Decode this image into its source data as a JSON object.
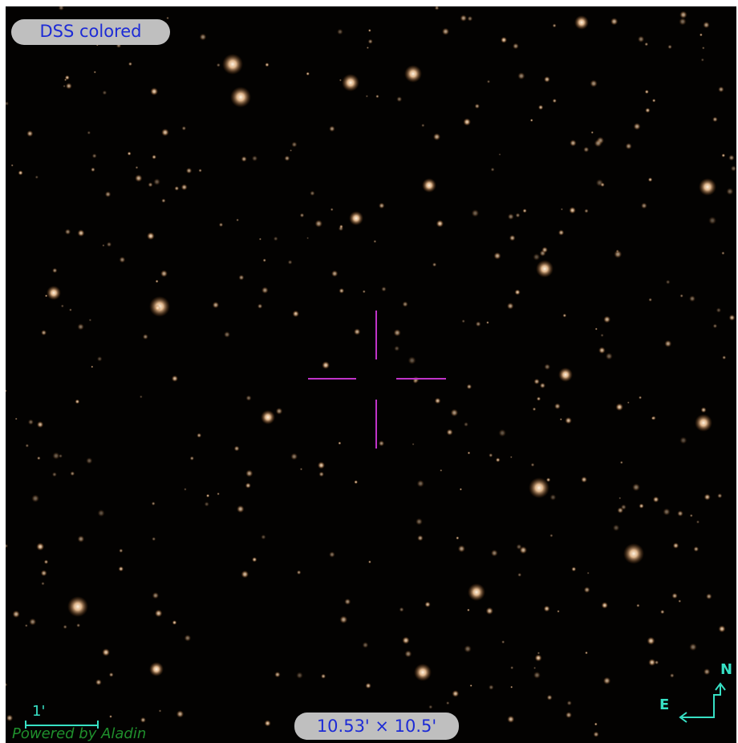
{
  "survey_label": "DSS colored",
  "fov_label": "10.53' × 10.5'",
  "credit": "Powered by Aladin",
  "scale": {
    "label": "1'"
  },
  "compass": {
    "north": "N",
    "east": "E"
  },
  "colors": {
    "sky": "#030201",
    "star": "#f6c89a",
    "reticle": "#c033c8",
    "overlay": "#37e0c4",
    "pill_bg": "#bfbfbf",
    "pill_text": "#1d2bd6",
    "credit_text": "#1f8f2c"
  }
}
